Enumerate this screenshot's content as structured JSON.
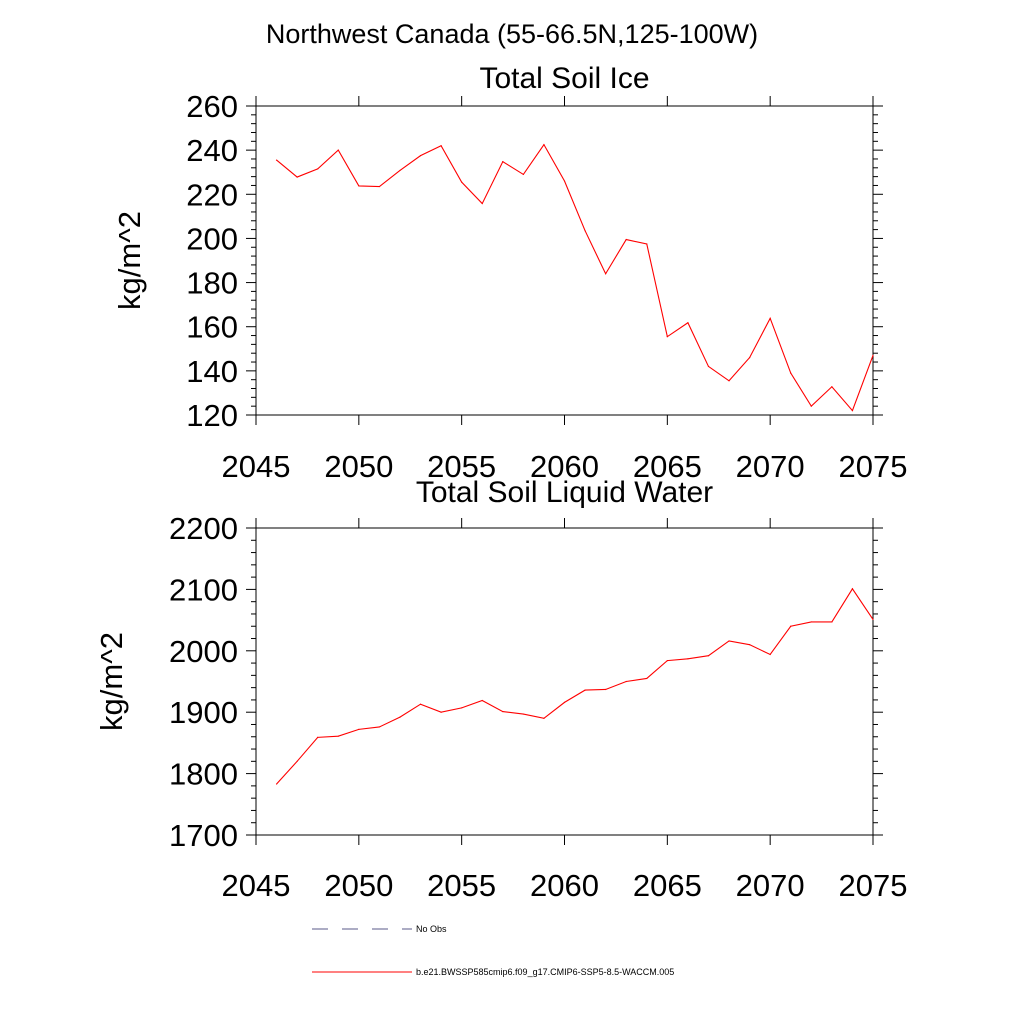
{
  "page_title": "Northwest Canada (55-66.5N,125-100W)",
  "chart_data": [
    {
      "type": "line",
      "title": "Total Soil Ice",
      "xlabel": "",
      "ylabel": "kg/m^2",
      "xlim": [
        2045,
        2075
      ],
      "ylim": [
        120,
        260
      ],
      "xticks": [
        2045,
        2050,
        2055,
        2060,
        2065,
        2070,
        2075
      ],
      "yticks": [
        120,
        140,
        160,
        180,
        200,
        220,
        240,
        260
      ],
      "x_tick_labels": [
        "2045",
        "2050",
        "2055",
        "2060",
        "2065",
        "2070",
        "2075"
      ],
      "y_tick_labels": [
        "120",
        "140",
        "160",
        "180",
        "200",
        "220",
        "240",
        "260"
      ],
      "grid": false,
      "x": [
        2046,
        2047,
        2048,
        2049,
        2050,
        2051,
        2052,
        2053,
        2054,
        2055,
        2056,
        2057,
        2058,
        2059,
        2060,
        2061,
        2062,
        2063,
        2064,
        2065,
        2066,
        2067,
        2068,
        2069,
        2070,
        2071,
        2072,
        2073,
        2074,
        2075
      ],
      "series": [
        {
          "name": "b.e21.BWSSP585cmip6.f09_g17.CMIP6-SSP5-8.5-WACCM.005",
          "color": "#ff0000",
          "values": [
            235.5,
            227.8,
            231.5,
            240.0,
            223.8,
            223.5,
            230.8,
            237.5,
            242.0,
            225.5,
            215.8,
            234.8,
            229.0,
            242.5,
            226.0,
            203.5,
            184.0,
            199.5,
            197.5,
            155.5,
            161.8,
            142.0,
            135.5,
            146.0,
            163.8,
            139.0,
            124.0,
            132.8,
            122.0,
            147.0
          ]
        }
      ]
    },
    {
      "type": "line",
      "title": "Total Soil Liquid Water",
      "xlabel": "",
      "ylabel": "kg/m^2",
      "xlim": [
        2045,
        2075
      ],
      "ylim": [
        1700,
        2200
      ],
      "xticks": [
        2045,
        2050,
        2055,
        2060,
        2065,
        2070,
        2075
      ],
      "yticks": [
        1700,
        1800,
        1900,
        2000,
        2100,
        2200
      ],
      "x_tick_labels": [
        "2045",
        "2050",
        "2055",
        "2060",
        "2065",
        "2070",
        "2075"
      ],
      "y_tick_labels": [
        "1700",
        "1800",
        "1900",
        "2000",
        "2100",
        "2200"
      ],
      "grid": false,
      "x": [
        2046,
        2047,
        2048,
        2049,
        2050,
        2051,
        2052,
        2053,
        2054,
        2055,
        2056,
        2057,
        2058,
        2059,
        2060,
        2061,
        2062,
        2063,
        2064,
        2065,
        2066,
        2067,
        2068,
        2069,
        2070,
        2071,
        2072,
        2073,
        2074,
        2075
      ],
      "series": [
        {
          "name": "b.e21.BWSSP585cmip6.f09_g17.CMIP6-SSP5-8.5-WACCM.005",
          "color": "#ff0000",
          "values": [
            1783,
            1820,
            1859,
            1861,
            1872,
            1876,
            1892,
            1913,
            1900,
            1907,
            1919,
            1901,
            1897,
            1890,
            1916,
            1936,
            1937,
            1950,
            1955,
            1984,
            1987,
            1992,
            2016,
            2010,
            1994,
            2040,
            2047,
            2047,
            2101,
            2051
          ]
        }
      ]
    }
  ],
  "legend": {
    "items": [
      {
        "label": "No Obs",
        "style": "dashed",
        "color": "#5a5a8a"
      },
      {
        "label": "b.e21.BWSSP585cmip6.f09_g17.CMIP6-SSP5-8.5-WACCM.005",
        "style": "solid",
        "color": "#ff0000"
      }
    ]
  }
}
